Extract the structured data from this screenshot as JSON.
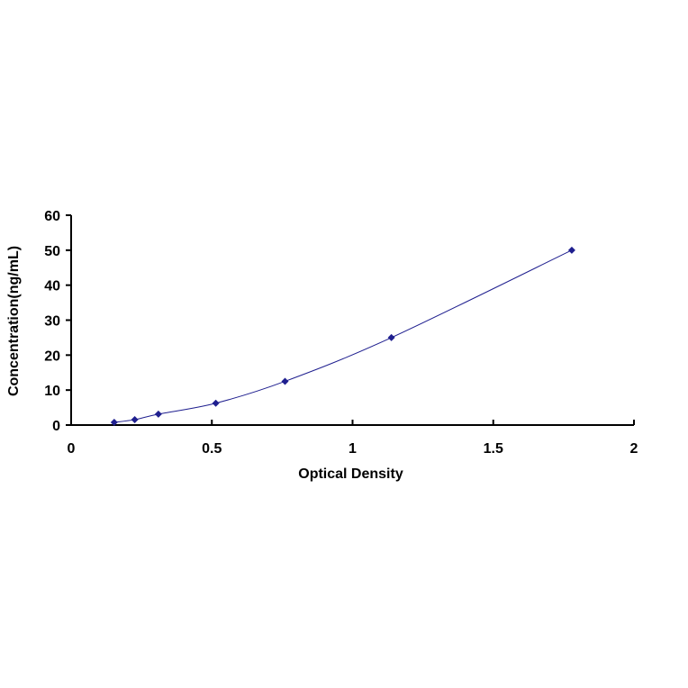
{
  "chart_data": {
    "type": "scatter",
    "title": "",
    "xlabel": "Optical Density",
    "ylabel": "Concentration(ng/mL)",
    "xlim": [
      0,
      2
    ],
    "ylim": [
      0,
      60
    ],
    "x_ticks": [
      "0",
      "0.5",
      "1",
      "1.5",
      "2"
    ],
    "y_ticks": [
      "0",
      "10",
      "20",
      "30",
      "40",
      "50",
      "60"
    ],
    "grid": false,
    "legend": "none",
    "series": [
      {
        "marker": "diamond",
        "line": "smooth",
        "x": [
          0.153,
          0.226,
          0.31,
          0.514,
          0.76,
          1.138,
          1.779
        ],
        "y": [
          0.78,
          1.56,
          3.12,
          6.25,
          12.5,
          25,
          50
        ]
      }
    ],
    "colors": {
      "series": "#1f1f8f",
      "axes": "#000000"
    }
  }
}
